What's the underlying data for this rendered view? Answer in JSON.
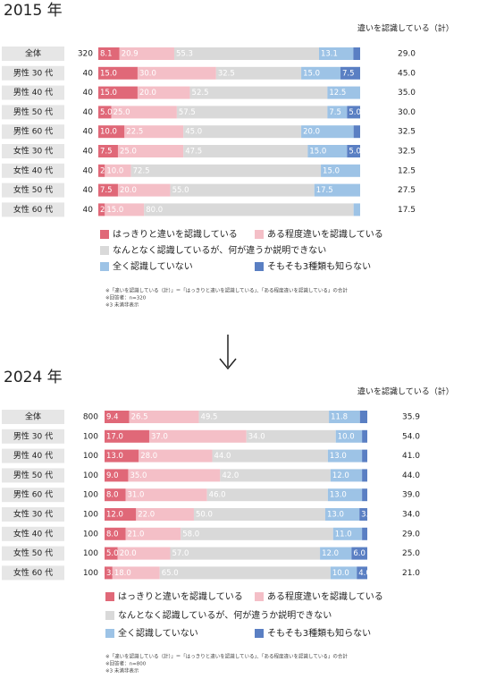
{
  "chart_data": [
    {
      "type": "bar",
      "stacked": true,
      "orientation": "horizontal",
      "title": "2015 年",
      "total_header": "違いを認識している（計）",
      "categories": [
        "全体",
        "男性 30 代",
        "男性 40 代",
        "男性 50 代",
        "男性 60 代",
        "女性 30 代",
        "女性 40 代",
        "女性 50 代",
        "女性 60 代"
      ],
      "n": [
        320,
        40,
        40,
        40,
        40,
        40,
        40,
        40,
        40
      ],
      "xlim": [
        0,
        100
      ],
      "series": [
        {
          "name": "はっきりと違いを認識している",
          "color": "#e06878",
          "values": [
            8.1,
            15.0,
            15.0,
            5.0,
            10.0,
            7.5,
            2.5,
            7.5,
            2.5
          ],
          "value_labels": [
            "8.1",
            "15.0",
            "15.0",
            "5.0",
            "10.0",
            "7.5",
            "2.5",
            "7.5",
            "2.5"
          ]
        },
        {
          "name": "ある程度違いを認識している",
          "color": "#f4bfc7",
          "values": [
            20.9,
            30.0,
            20.0,
            25.0,
            22.5,
            25.0,
            10.0,
            20.0,
            15.0
          ],
          "value_labels": [
            "20.9",
            "30.0",
            "20.0",
            "25.0",
            "22.5",
            "25.0",
            "10.0",
            "20.0",
            "15.0"
          ]
        },
        {
          "name": "なんとなく認識しているが、何が違うか説明できない",
          "color": "#d9d9d9",
          "values": [
            55.3,
            32.5,
            52.5,
            57.5,
            45.0,
            47.5,
            72.5,
            55.0,
            80.0
          ],
          "value_labels": [
            "55.3",
            "32.5",
            "52.5",
            "57.5",
            "45.0",
            "47.5",
            "72.5",
            "55.0",
            "80.0"
          ]
        },
        {
          "name": "全く認識していない",
          "color": "#9dc3e6",
          "values": [
            13.1,
            15.0,
            12.5,
            7.5,
            20.0,
            15.0,
            15.0,
            17.5,
            2.5
          ],
          "value_labels": [
            "13.1",
            "15.0",
            "12.5",
            "7.5",
            "20.0",
            "15.0",
            "15.0",
            "17.5",
            null
          ]
        },
        {
          "name": "そもそも3種類も知らない",
          "color": "#5a7fc3",
          "values": [
            2.6,
            7.5,
            0,
            5.0,
            2.5,
            5.0,
            0,
            0,
            0
          ],
          "value_labels": [
            null,
            "7.5",
            null,
            "5.0",
            null,
            "5.0",
            null,
            null,
            null
          ]
        }
      ],
      "totals": {
        "values": [
          29.0,
          45.0,
          35.0,
          30.0,
          32.5,
          32.5,
          12.5,
          27.5,
          17.5
        ],
        "value_labels": [
          "29.0",
          "45.0",
          "35.0",
          "30.0",
          "32.5",
          "32.5",
          "12.5",
          "27.5",
          "17.5"
        ]
      },
      "notes": [
        "※「違いを認識している（計）」＝「はっきりと違いを認識している」、「ある程度違いを認識している」の合計",
        "※回答者：n=320",
        "※3 未満非表示"
      ]
    },
    {
      "type": "bar",
      "stacked": true,
      "orientation": "horizontal",
      "title": "2024 年",
      "total_header": "違いを認識している（計）",
      "categories": [
        "全体",
        "男性 30 代",
        "男性 40 代",
        "男性 50 代",
        "男性 60 代",
        "女性 30 代",
        "女性 40 代",
        "女性 50 代",
        "女性 60 代"
      ],
      "n": [
        800,
        100,
        100,
        100,
        100,
        100,
        100,
        100,
        100
      ],
      "xlim": [
        0,
        100
      ],
      "series": [
        {
          "name": "はっきりと違いを認識している",
          "color": "#e06878",
          "values": [
            9.4,
            17.0,
            13.0,
            9.0,
            8.0,
            12.0,
            8.0,
            5.0,
            3.0
          ],
          "value_labels": [
            "9.4",
            "17.0",
            "13.0",
            "9.0",
            "8.0",
            "12.0",
            "8.0",
            "5.0",
            "3.0"
          ]
        },
        {
          "name": "ある程度違いを認識している",
          "color": "#f4bfc7",
          "values": [
            26.5,
            37.0,
            28.0,
            35.0,
            31.0,
            22.0,
            21.0,
            20.0,
            18.0
          ],
          "value_labels": [
            "26.5",
            "37.0",
            "28.0",
            "35.0",
            "31.0",
            "22.0",
            "21.0",
            "20.0",
            "18.0"
          ]
        },
        {
          "name": "なんとなく認識しているが、何が違うか説明できない",
          "color": "#d9d9d9",
          "values": [
            49.5,
            34.0,
            44.0,
            42.0,
            46.0,
            50.0,
            58.0,
            57.0,
            65.0
          ],
          "value_labels": [
            "49.5",
            "34.0",
            "44.0",
            "42.0",
            "46.0",
            "50.0",
            "58.0",
            "57.0",
            "65.0"
          ]
        },
        {
          "name": "全く認識していない",
          "color": "#9dc3e6",
          "values": [
            11.8,
            10.0,
            13.0,
            12.0,
            13.0,
            13.0,
            11.0,
            12.0,
            10.0
          ],
          "value_labels": [
            "11.8",
            "10.0",
            "13.0",
            "12.0",
            "13.0",
            "13.0",
            "11.0",
            "12.0",
            "10.0"
          ]
        },
        {
          "name": "そもそも3種類も知らない",
          "color": "#5a7fc3",
          "values": [
            2.8,
            2.0,
            2.0,
            2.0,
            2.0,
            3.0,
            2.0,
            6.0,
            4.0
          ],
          "value_labels": [
            null,
            null,
            null,
            null,
            null,
            "3.0",
            null,
            "6.0",
            "4.0"
          ]
        }
      ],
      "totals": {
        "values": [
          35.9,
          54.0,
          41.0,
          44.0,
          39.0,
          34.0,
          29.0,
          25.0,
          21.0
        ],
        "value_labels": [
          "35.9",
          "54.0",
          "41.0",
          "44.0",
          "39.0",
          "34.0",
          "29.0",
          "25.0",
          "21.0"
        ]
      },
      "notes": [
        "※「違いを認識している（計）」＝「はっきりと違いを認識している」、「ある程度違いを認識している」の合計",
        "※回答者：n=800",
        "※3 未満非表示"
      ]
    }
  ]
}
